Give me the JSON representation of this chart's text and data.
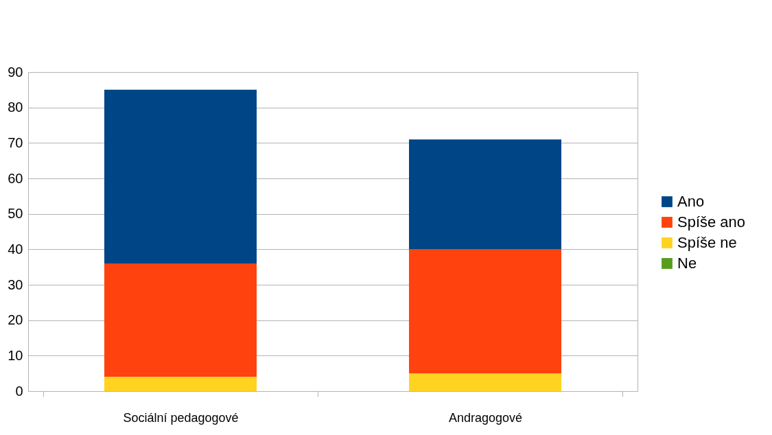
{
  "chart_data": {
    "type": "bar",
    "stacked": true,
    "categories": [
      "Sociální pedagogové",
      "Andragogové"
    ],
    "series": [
      {
        "name": "Ne",
        "color": "#579d1c",
        "values": [
          0,
          0
        ]
      },
      {
        "name": "Spíše ne",
        "color": "#ffd320",
        "values": [
          4,
          5
        ]
      },
      {
        "name": "Spíše ano",
        "color": "#ff420e",
        "values": [
          32,
          35
        ]
      },
      {
        "name": "Ano",
        "color": "#004586",
        "values": [
          49,
          31
        ]
      }
    ],
    "ylim": [
      0,
      90
    ],
    "yticks": [
      0,
      10,
      20,
      30,
      40,
      50,
      60,
      70,
      80,
      90
    ],
    "grid": "y",
    "legend": "right"
  }
}
